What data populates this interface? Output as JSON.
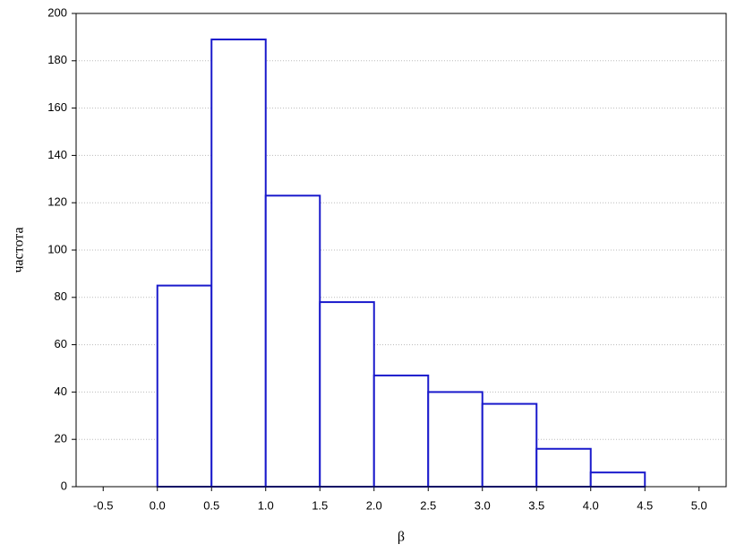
{
  "chart_data": {
    "type": "histogram",
    "xlabel": "β",
    "ylabel": "частота",
    "bins": [
      0,
      0.5,
      1,
      1.5,
      2,
      2.5,
      3,
      3.5,
      4,
      4.5
    ],
    "values": [
      85,
      189,
      123,
      78,
      47,
      40,
      35,
      16,
      6
    ],
    "color": "#1a1acc",
    "xlim": [
      -0.75,
      5.25
    ],
    "xticks": [
      {
        "value": -0.5,
        "label": "-0.5"
      },
      {
        "value": 0,
        "label": "0.0"
      },
      {
        "value": 0.5,
        "label": "0.5"
      },
      {
        "value": 1,
        "label": "1.0"
      },
      {
        "value": 1.5,
        "label": "1.5"
      },
      {
        "value": 2,
        "label": "2.0"
      },
      {
        "value": 2.5,
        "label": "2.5"
      },
      {
        "value": 3,
        "label": "3.0"
      },
      {
        "value": 3.5,
        "label": "3.5"
      },
      {
        "value": 4,
        "label": "4.0"
      },
      {
        "value": 4.5,
        "label": "4.5"
      },
      {
        "value": 5,
        "label": "5.0"
      }
    ],
    "ylim": [
      0,
      200
    ],
    "yticks": [
      0,
      20,
      40,
      60,
      80,
      100,
      120,
      140,
      160,
      180,
      200
    ],
    "grid": true
  }
}
